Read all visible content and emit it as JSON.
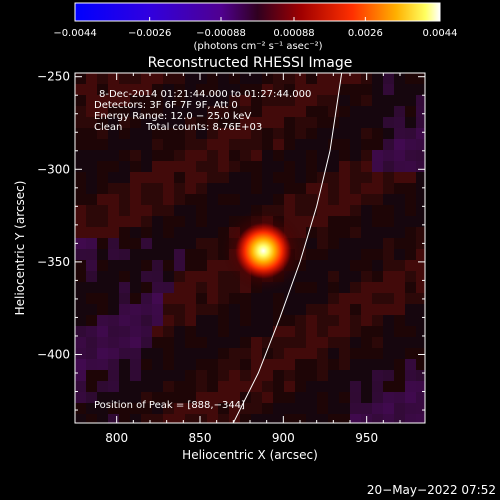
{
  "chart_data": {
    "type": "heatmap",
    "title": "Reconstructed RHESSI Image",
    "xlabel": "Heliocentric X (arcsec)",
    "ylabel": "Heliocentric Y (arcsec)",
    "xlim": [
      775,
      985
    ],
    "ylim": [
      -437,
      -248
    ],
    "x_ticks": [
      800,
      850,
      900,
      950
    ],
    "y_ticks": [
      -250,
      -300,
      -350,
      -400
    ],
    "x_tick_labels": [
      "800",
      "850",
      "900",
      "950"
    ],
    "y_tick_labels": [
      "−250",
      "−300",
      "−350",
      "−400"
    ],
    "colorbar": {
      "range": [
        -0.0044,
        0.0044
      ],
      "ticks": [
        -0.0044,
        -0.0026,
        -0.00088,
        0.00088,
        0.0026,
        0.0044
      ],
      "tick_labels": [
        "−0.0044",
        "−0.0026",
        "−0.00088",
        "0.00088",
        "0.0026",
        "0.0044"
      ],
      "unit_label": "(photons cm⁻² s⁻¹ asec⁻²)",
      "colormap": "rhessi-blue-purple-red-yellow-white"
    },
    "annotations": {
      "time_range": "8-Dec-2014 01:21:44.000 to 01:27:44.000",
      "detectors": "Detectors: 3F 6F 7F 9F, Att 0",
      "energy_range": "Energy Range: 12.0 − 25.0 keV",
      "method": "Clean",
      "total_counts": "Total counts: 8.76E+03",
      "peak_position": "Position of Peak = [888,−344]"
    },
    "peak": {
      "x": 888,
      "y": -344
    },
    "limb_curve": [
      [
        870,
        -437
      ],
      [
        885,
        -410
      ],
      [
        898,
        -380
      ],
      [
        910,
        -350
      ],
      [
        920,
        -320
      ],
      [
        928,
        -290
      ],
      [
        935,
        -248
      ]
    ],
    "timestamp": "20−May−2022 07:52"
  }
}
